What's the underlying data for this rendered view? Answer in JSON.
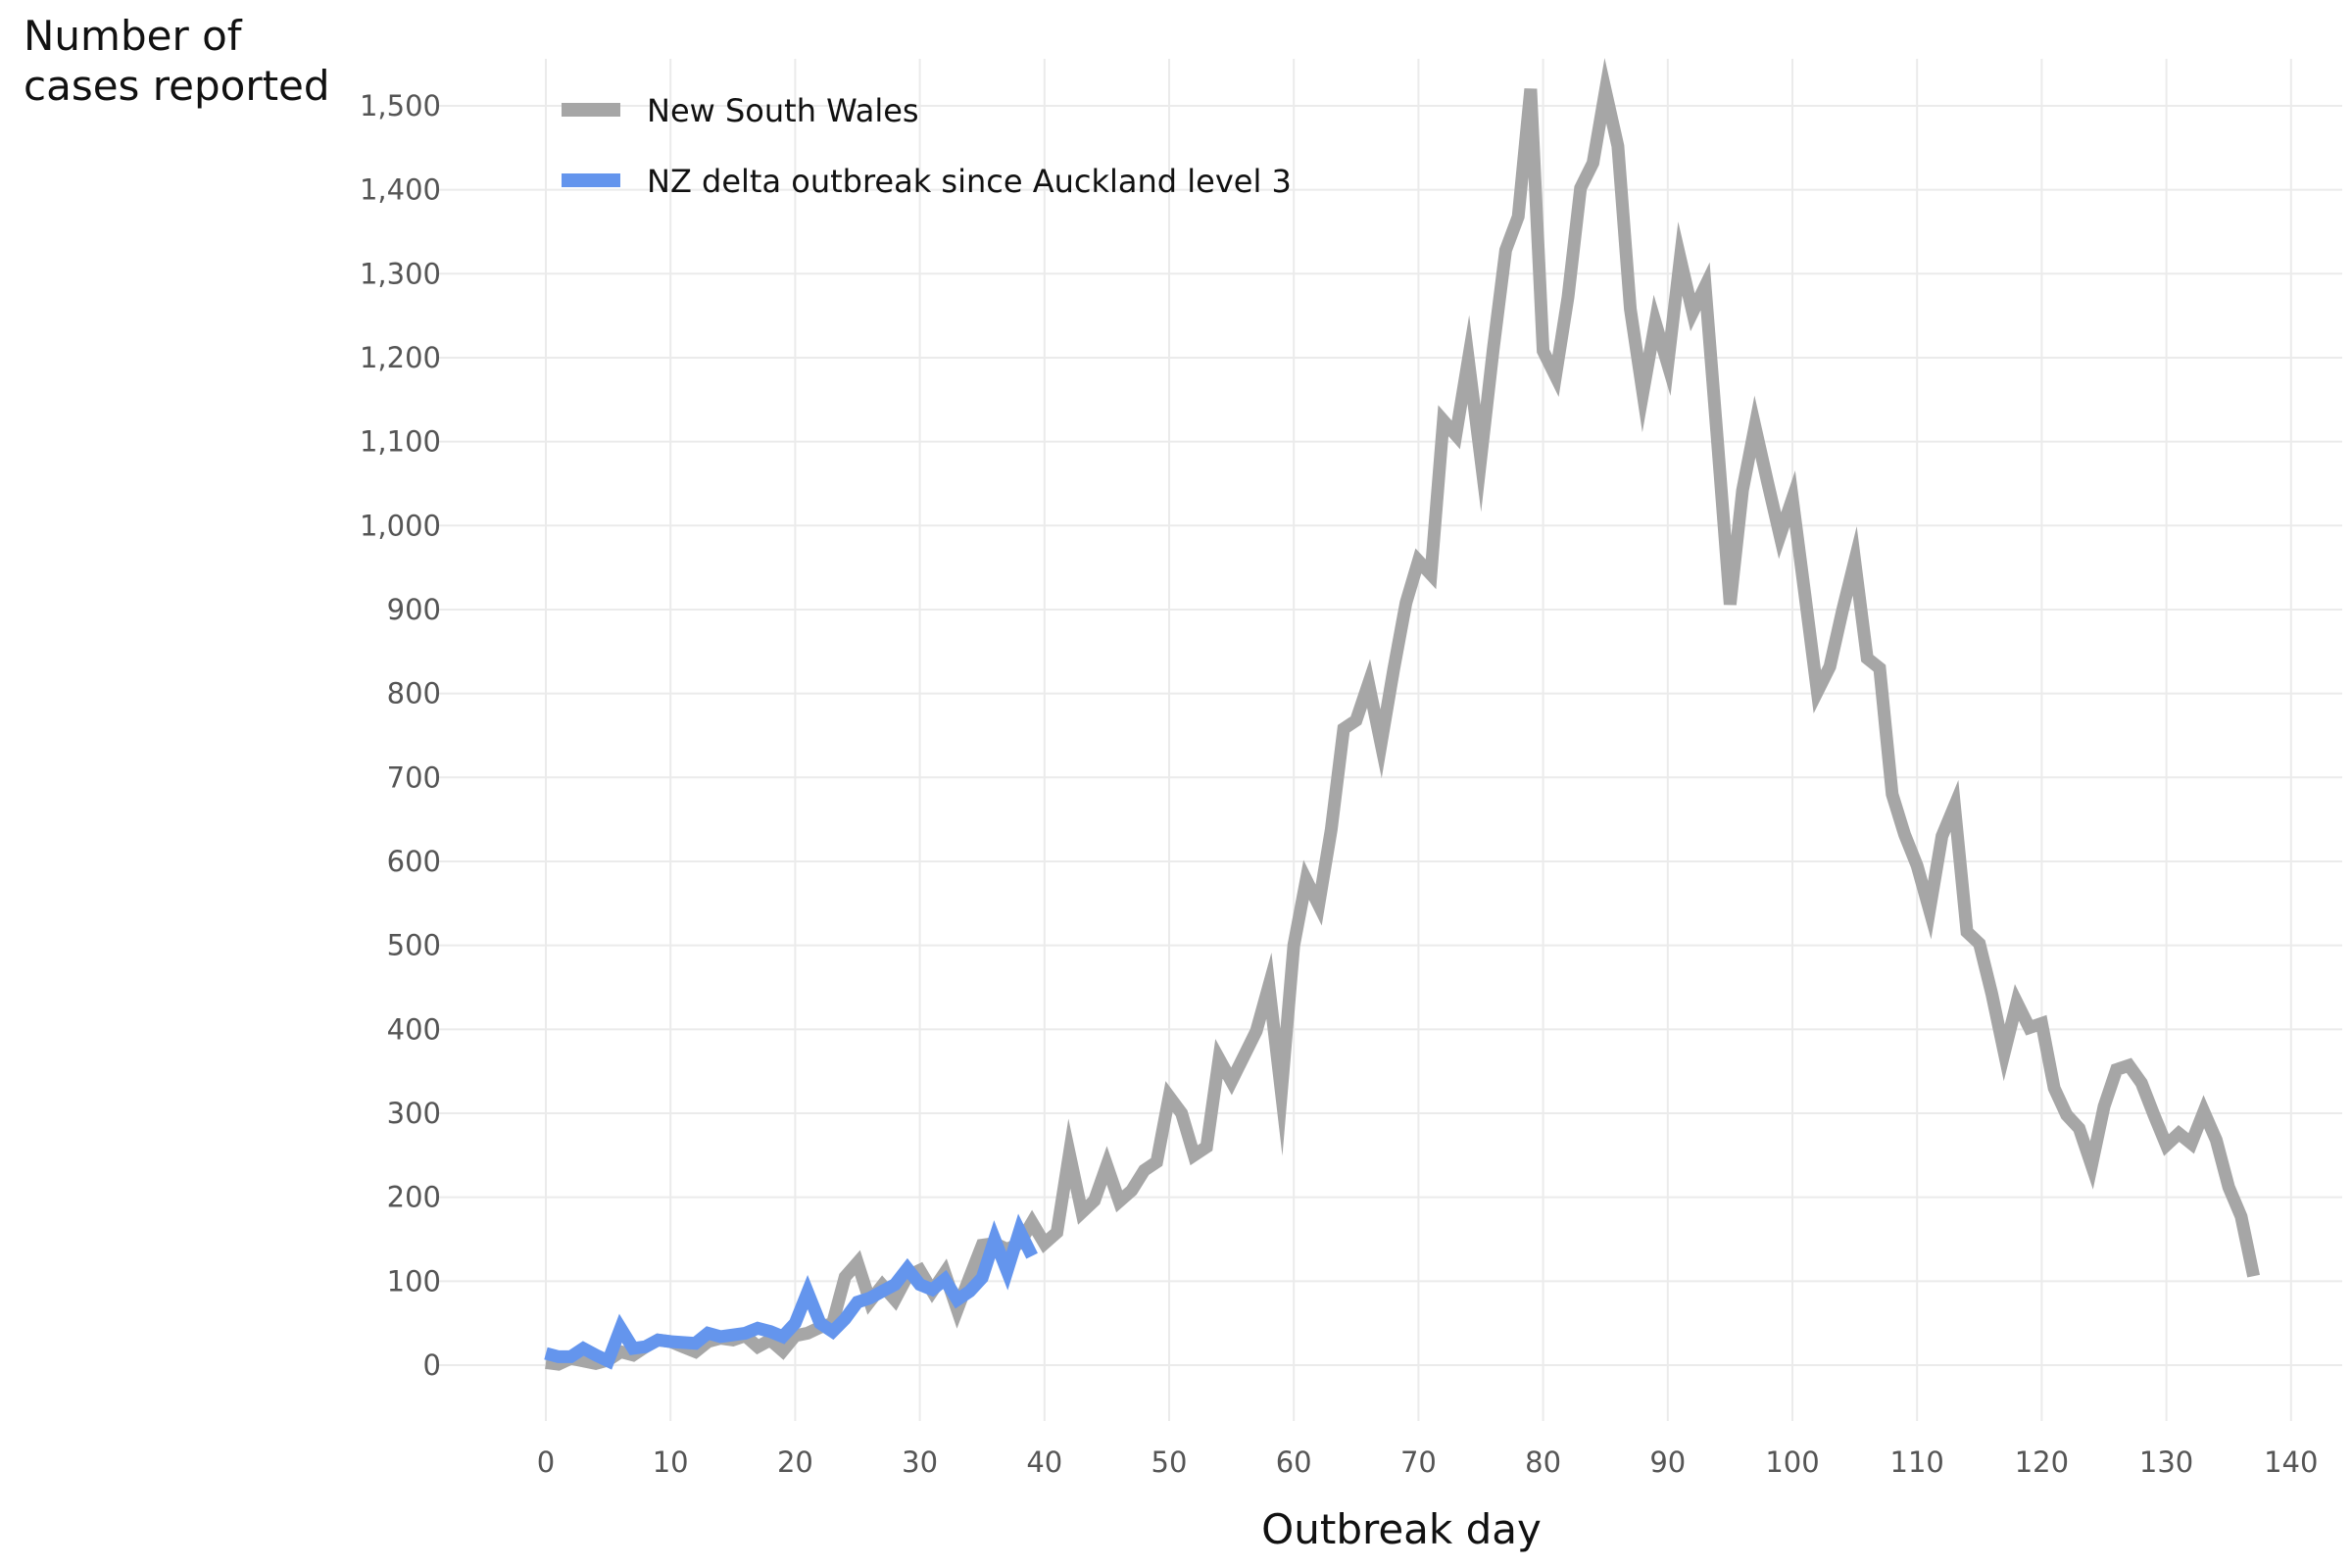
{
  "chart_data": {
    "type": "line",
    "title": "",
    "xlabel": "Outbreak day",
    "ylabel_lines": [
      "Number of",
      "cases reported"
    ],
    "xlim": [
      0,
      140
    ],
    "ylim": [
      0,
      1500
    ],
    "x_ticks": [
      "0",
      "10",
      "20",
      "30",
      "40",
      "50",
      "60",
      "70",
      "80",
      "90",
      "100",
      "110",
      "120",
      "130",
      "140"
    ],
    "y_ticks": [
      "0",
      "100",
      "200",
      "300",
      "400",
      "500",
      "600",
      "700",
      "800",
      "900",
      "1,000",
      "1,100",
      "1,200",
      "1,300",
      "1,400",
      "1,500"
    ],
    "grid": true,
    "legend_position": "top-left",
    "series": [
      {
        "name": "New South Wales",
        "color": "#a6a6a6",
        "x": [
          0,
          1,
          2,
          3,
          4,
          5,
          6,
          7,
          8,
          9,
          10,
          11,
          12,
          13,
          14,
          15,
          16,
          17,
          18,
          19,
          20,
          21,
          22,
          23,
          24,
          25,
          26,
          27,
          28,
          29,
          30,
          31,
          32,
          33,
          34,
          35,
          36,
          37,
          38,
          39,
          40,
          41,
          42,
          43,
          44,
          45,
          46,
          47,
          48,
          49,
          50,
          51,
          52,
          53,
          54,
          55,
          56,
          57,
          58,
          59,
          60,
          61,
          62,
          63,
          64,
          65,
          66,
          67,
          68,
          69,
          70,
          71,
          72,
          73,
          74,
          75,
          76,
          77,
          78,
          79,
          80,
          81,
          82,
          83,
          84,
          85,
          86,
          87,
          88,
          89,
          90,
          91,
          92,
          93,
          94,
          95,
          96,
          97,
          98,
          99,
          100,
          101,
          102,
          103,
          104,
          105,
          106,
          107,
          108,
          109,
          110,
          111,
          112,
          113,
          114,
          115,
          116,
          117,
          118,
          119,
          120,
          121,
          122,
          123,
          124,
          125,
          126,
          127,
          128,
          129,
          130,
          131,
          132,
          133,
          134,
          135,
          136,
          137
        ],
        "y": [
          3,
          1,
          8,
          5,
          2,
          6,
          16,
          12,
          22,
          30,
          28,
          22,
          16,
          28,
          32,
          30,
          35,
          22,
          30,
          17,
          35,
          38,
          45,
          50,
          105,
          122,
          76,
          95,
          78,
          106,
          113,
          88,
          110,
          66,
          105,
          143,
          145,
          138,
          145,
          170,
          145,
          158,
          252,
          182,
          196,
          238,
          195,
          208,
          232,
          242,
          320,
          300,
          250,
          260,
          365,
          338,
          368,
          398,
          452,
          325,
          500,
          578,
          548,
          638,
          758,
          768,
          812,
          740,
          828,
          908,
          958,
          942,
          1125,
          1108,
          1198,
          1080,
          1210,
          1328,
          1368,
          1520,
          1208,
          1178,
          1272,
          1402,
          1432,
          1518,
          1452,
          1258,
          1158,
          1242,
          1192,
          1318,
          1254,
          1285,
          1098,
          906,
          1042,
          1118,
          1052,
          988,
          1032,
          918,
          802,
          832,
          898,
          958,
          842,
          830,
          680,
          632,
          595,
          542,
          630,
          666,
          516,
          502,
          442,
          372,
          432,
          402,
          407,
          330,
          298,
          282,
          238,
          308,
          352,
          357,
          336,
          298,
          262,
          276,
          264,
          302,
          268,
          212,
          177,
          106
        ]
      },
      {
        "name": "NZ delta outbreak since Auckland level 3",
        "color": "#6495ed",
        "x": [
          0,
          1,
          2,
          3,
          4,
          5,
          6,
          7,
          8,
          9,
          10,
          11,
          12,
          13,
          14,
          15,
          16,
          17,
          18,
          19,
          20,
          21,
          22,
          23,
          24,
          25,
          26,
          27,
          28,
          29,
          30,
          31,
          32,
          33,
          34,
          35,
          36,
          37,
          38,
          39
        ],
        "y": [
          14,
          10,
          10,
          20,
          12,
          5,
          44,
          20,
          22,
          30,
          28,
          27,
          26,
          38,
          34,
          36,
          38,
          44,
          40,
          34,
          50,
          87,
          50,
          40,
          55,
          75,
          80,
          88,
          96,
          115,
          96,
          90,
          102,
          78,
          88,
          104,
          150,
          112,
          160,
          130
        ]
      }
    ]
  }
}
